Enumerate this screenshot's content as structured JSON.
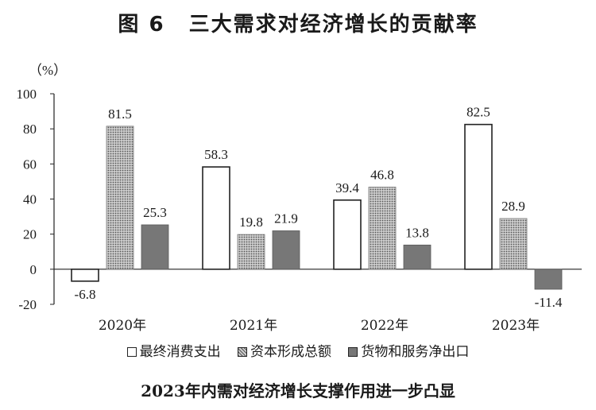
{
  "title_fig": "图 6",
  "title_text": "三大需求对经济增长的贡献率",
  "unit_label": "（%）",
  "subtitle": "2023年内需对经济增长支撑作用进一步凸显",
  "chart_data": {
    "type": "bar",
    "categories": [
      "2020年",
      "2021年",
      "2022年",
      "2023年"
    ],
    "series": [
      {
        "name": "最终消费支出",
        "values": [
          -6.8,
          58.3,
          39.4,
          82.5
        ],
        "fill": "#ffffff",
        "pattern": "none"
      },
      {
        "name": "资本形成总额",
        "values": [
          81.5,
          19.8,
          46.8,
          28.9
        ],
        "fill": "#b5b5b5",
        "pattern": "dots"
      },
      {
        "name": "货物和服务净出口",
        "values": [
          25.3,
          21.9,
          13.8,
          -11.4
        ],
        "fill": "#777777",
        "pattern": "none"
      }
    ],
    "data_labels": [
      [
        "-6.8",
        "58.3",
        "39.4",
        "82.5"
      ],
      [
        "81.5",
        "19.8",
        "46.8",
        "28.9"
      ],
      [
        "25.3",
        "21.9",
        "13.8",
        "-11.4"
      ]
    ],
    "ylim": [
      -20,
      100
    ],
    "yticks": [
      -20,
      0,
      20,
      40,
      60,
      80,
      100
    ],
    "ytick_labels": [
      "-20",
      "0",
      "20",
      "40",
      "60",
      "80",
      "100"
    ],
    "grid": false,
    "legend_position": "bottom"
  }
}
